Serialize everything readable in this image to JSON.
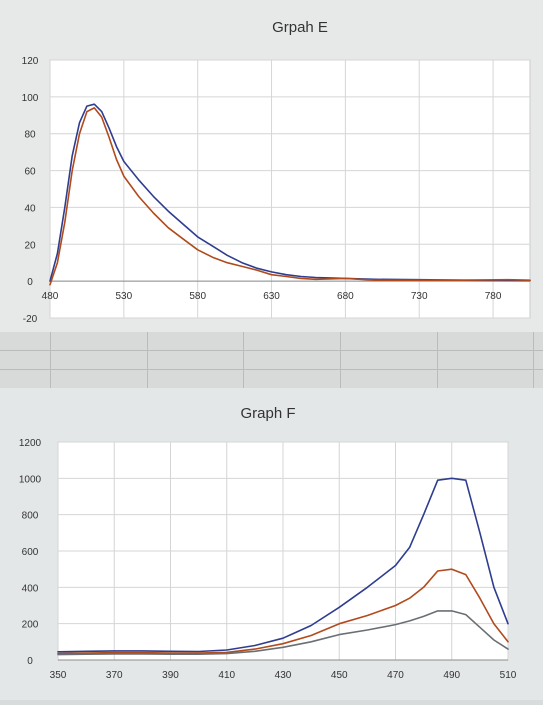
{
  "chart_data": [
    {
      "type": "line",
      "title": "Grpah E",
      "xlabel": "",
      "ylabel": "",
      "xlim": [
        480,
        805
      ],
      "ylim": [
        -20,
        120
      ],
      "x_ticks": [
        480,
        530,
        580,
        630,
        680,
        730,
        780
      ],
      "y_ticks": [
        -20,
        0,
        20,
        40,
        60,
        80,
        100,
        120
      ],
      "grid": true,
      "legend": "none",
      "series": [
        {
          "color": "#2e3d8f",
          "x": [
            480,
            485,
            490,
            495,
            500,
            505,
            510,
            515,
            520,
            525,
            530,
            540,
            550,
            560,
            570,
            580,
            590,
            600,
            610,
            620,
            630,
            640,
            650,
            660,
            680,
            700,
            730,
            760,
            790,
            805
          ],
          "values": [
            0,
            15,
            40,
            68,
            86,
            95,
            96,
            92,
            83,
            73,
            65,
            55,
            46,
            38,
            31,
            24,
            19,
            14,
            10,
            7,
            5,
            3.5,
            2.5,
            2,
            1.5,
            1,
            0.8,
            0.5,
            0.4,
            0.3
          ]
        },
        {
          "color": "#b14a1c",
          "x": [
            480,
            485,
            490,
            495,
            500,
            505,
            510,
            515,
            520,
            525,
            530,
            540,
            550,
            560,
            570,
            580,
            590,
            600,
            610,
            620,
            630,
            640,
            650,
            660,
            680,
            700,
            730,
            760,
            790,
            805
          ],
          "values": [
            -2,
            10,
            32,
            60,
            80,
            92,
            94,
            89,
            78,
            66,
            57,
            46,
            37,
            29,
            23,
            17,
            13,
            10,
            8,
            6,
            3.5,
            2.5,
            1.5,
            1,
            1.5,
            0.5,
            0.5,
            0.5,
            0.8,
            0.5
          ]
        }
      ]
    },
    {
      "type": "line",
      "title": "Graph F",
      "xlabel": "",
      "ylabel": "",
      "xlim": [
        350,
        510
      ],
      "ylim": [
        0,
        1200
      ],
      "x_ticks": [
        350,
        370,
        390,
        410,
        430,
        450,
        470,
        490,
        510
      ],
      "y_ticks": [
        0,
        200,
        400,
        600,
        800,
        1000,
        1200
      ],
      "grid": true,
      "legend": "none",
      "series": [
        {
          "color": "#2e3d8f",
          "x": [
            350,
            360,
            370,
            380,
            390,
            400,
            410,
            420,
            430,
            440,
            450,
            460,
            470,
            475,
            480,
            485,
            490,
            495,
            500,
            505,
            510
          ],
          "values": [
            45,
            48,
            50,
            50,
            48,
            47,
            55,
            80,
            120,
            190,
            290,
            400,
            520,
            620,
            800,
            990,
            1000,
            990,
            700,
            400,
            200
          ]
        },
        {
          "color": "#b14a1c",
          "x": [
            350,
            360,
            370,
            380,
            390,
            400,
            410,
            420,
            430,
            440,
            450,
            460,
            470,
            475,
            480,
            485,
            490,
            495,
            500,
            505,
            510
          ],
          "values": [
            35,
            38,
            40,
            40,
            38,
            38,
            42,
            60,
            90,
            135,
            200,
            245,
            300,
            340,
            400,
            490,
            500,
            470,
            340,
            200,
            100
          ]
        },
        {
          "color": "#6b6f73",
          "x": [
            350,
            360,
            370,
            380,
            390,
            400,
            410,
            420,
            430,
            440,
            450,
            460,
            470,
            475,
            480,
            485,
            490,
            495,
            500,
            505,
            510
          ],
          "values": [
            30,
            32,
            33,
            33,
            32,
            32,
            35,
            48,
            70,
            100,
            140,
            165,
            195,
            215,
            240,
            270,
            270,
            250,
            180,
            110,
            60
          ]
        }
      ]
    }
  ]
}
